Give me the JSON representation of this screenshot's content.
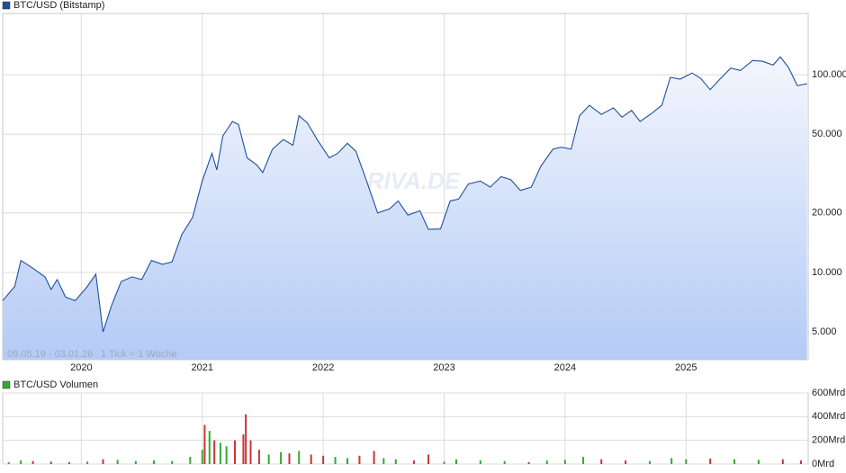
{
  "chart_data": [
    {
      "type": "area",
      "title": "BTC/USD (Bitstamp)",
      "color": "#1f4f9f",
      "log_scale": true,
      "grid": true,
      "annotations": [
        "09.05.19 - 03.01.26",
        "1 Tick = 1 Woche",
        "ARIVA.DE"
      ],
      "xlim": [
        2019.35,
        2026.01
      ],
      "xticks": [
        2020,
        2021,
        2022,
        2023,
        2024,
        2025
      ],
      "ylim": [
        3620,
        204000
      ],
      "yticks": [
        {
          "value": 5000,
          "label": "5.000"
        },
        {
          "value": 10000,
          "label": "10.000"
        },
        {
          "value": 20000,
          "label": "20.000"
        },
        {
          "value": 50000,
          "label": "50.000"
        },
        {
          "value": 100000,
          "label": "100.000"
        }
      ],
      "x": [
        2019.35,
        2019.45,
        2019.5,
        2019.6,
        2019.7,
        2019.75,
        2019.8,
        2019.87,
        2019.95,
        2020.05,
        2020.12,
        2020.18,
        2020.25,
        2020.33,
        2020.42,
        2020.5,
        2020.58,
        2020.67,
        2020.75,
        2020.83,
        2020.92,
        2021.0,
        2021.08,
        2021.12,
        2021.17,
        2021.25,
        2021.3,
        2021.37,
        2021.45,
        2021.5,
        2021.58,
        2021.67,
        2021.75,
        2021.8,
        2021.87,
        2021.95,
        2022.05,
        2022.12,
        2022.2,
        2022.27,
        2022.35,
        2022.45,
        2022.55,
        2022.62,
        2022.7,
        2022.8,
        2022.87,
        2022.97,
        2023.05,
        2023.12,
        2023.2,
        2023.3,
        2023.38,
        2023.47,
        2023.55,
        2023.63,
        2023.72,
        2023.8,
        2023.9,
        2023.97,
        2024.05,
        2024.12,
        2024.2,
        2024.3,
        2024.4,
        2024.47,
        2024.55,
        2024.62,
        2024.72,
        2024.8,
        2024.87,
        2024.95,
        2025.05,
        2025.12,
        2025.2,
        2025.28,
        2025.37,
        2025.45,
        2025.55,
        2025.63,
        2025.72,
        2025.78,
        2025.85,
        2025.92,
        2026.0
      ],
      "series": [
        {
          "name": "BTC/USD (Bitstamp)",
          "values": [
            7200,
            8500,
            11500,
            10500,
            9500,
            8200,
            9200,
            7500,
            7200,
            8500,
            9800,
            5000,
            6800,
            9000,
            9500,
            9200,
            11500,
            11000,
            11300,
            15500,
            19000,
            29000,
            40000,
            33000,
            49000,
            58000,
            56000,
            38000,
            35000,
            32000,
            42000,
            47000,
            44000,
            62000,
            57000,
            47000,
            38000,
            40000,
            45000,
            41000,
            30000,
            20000,
            21000,
            23000,
            19500,
            20500,
            16500,
            16600,
            23000,
            23500,
            28000,
            29000,
            27000,
            30500,
            29500,
            26000,
            27000,
            34500,
            42000,
            43000,
            42000,
            62000,
            70000,
            63000,
            68000,
            61000,
            66000,
            58000,
            64000,
            70000,
            97000,
            95000,
            102000,
            96000,
            84000,
            95000,
            108000,
            105000,
            118000,
            117000,
            112000,
            123000,
            108000,
            88000,
            90000
          ]
        }
      ]
    },
    {
      "type": "bar",
      "title": "BTC/USD Volumen",
      "legend_color": "#33aa33",
      "grid": true,
      "xlim": [
        2019.35,
        2026.01
      ],
      "ylim": [
        0,
        600
      ],
      "yticks": [
        {
          "value": 0,
          "label": "0Mrd"
        },
        {
          "value": 200,
          "label": "200Mrd"
        },
        {
          "value": 400,
          "label": "400Mrd"
        },
        {
          "value": 600,
          "label": "600Mrd"
        }
      ],
      "x": [
        2019.4,
        2019.5,
        2019.6,
        2019.75,
        2019.9,
        2020.05,
        2020.18,
        2020.3,
        2020.45,
        2020.6,
        2020.75,
        2020.9,
        2021.0,
        2021.02,
        2021.06,
        2021.1,
        2021.15,
        2021.2,
        2021.27,
        2021.34,
        2021.36,
        2021.4,
        2021.47,
        2021.55,
        2021.65,
        2021.72,
        2021.8,
        2021.9,
        2022.0,
        2022.1,
        2022.2,
        2022.3,
        2022.42,
        2022.5,
        2022.6,
        2022.75,
        2022.87,
        2023.0,
        2023.1,
        2023.3,
        2023.5,
        2023.7,
        2023.85,
        2024.0,
        2024.15,
        2024.3,
        2024.5,
        2024.7,
        2024.88,
        2025.0,
        2025.2,
        2025.4,
        2025.6,
        2025.8,
        2025.95
      ],
      "series": [
        {
          "name": "BTC/USD Volumen",
          "values": [
            15,
            30,
            25,
            20,
            15,
            20,
            40,
            35,
            25,
            30,
            25,
            60,
            120,
            330,
            280,
            200,
            180,
            150,
            200,
            250,
            420,
            200,
            120,
            80,
            100,
            90,
            110,
            80,
            70,
            60,
            50,
            70,
            110,
            50,
            40,
            30,
            80,
            20,
            40,
            30,
            25,
            15,
            30,
            35,
            60,
            40,
            30,
            25,
            50,
            40,
            45,
            40,
            35,
            40,
            30
          ],
          "colors": [
            "#33aa33",
            "#33aa33",
            "#cc3333",
            "#cc3333",
            "#cc3333",
            "#33aa33",
            "#cc3333",
            "#33aa33",
            "#33aa33",
            "#33aa33",
            "#33aa33",
            "#33aa33",
            "#33aa33",
            "#cc3333",
            "#33aa33",
            "#cc3333",
            "#33aa33",
            "#33aa33",
            "#cc3333",
            "#cc3333",
            "#cc3333",
            "#cc3333",
            "#cc3333",
            "#33aa33",
            "#33aa33",
            "#cc3333",
            "#33aa33",
            "#cc3333",
            "#cc3333",
            "#33aa33",
            "#33aa33",
            "#cc3333",
            "#cc3333",
            "#33aa33",
            "#33aa33",
            "#cc3333",
            "#cc3333",
            "#33aa33",
            "#33aa33",
            "#33aa33",
            "#33aa33",
            "#cc3333",
            "#33aa33",
            "#33aa33",
            "#33aa33",
            "#cc3333",
            "#cc3333",
            "#33aa33",
            "#33aa33",
            "#33aa33",
            "#cc3333",
            "#33aa33",
            "#33aa33",
            "#cc3333",
            "#cc3333"
          ]
        }
      ]
    }
  ]
}
